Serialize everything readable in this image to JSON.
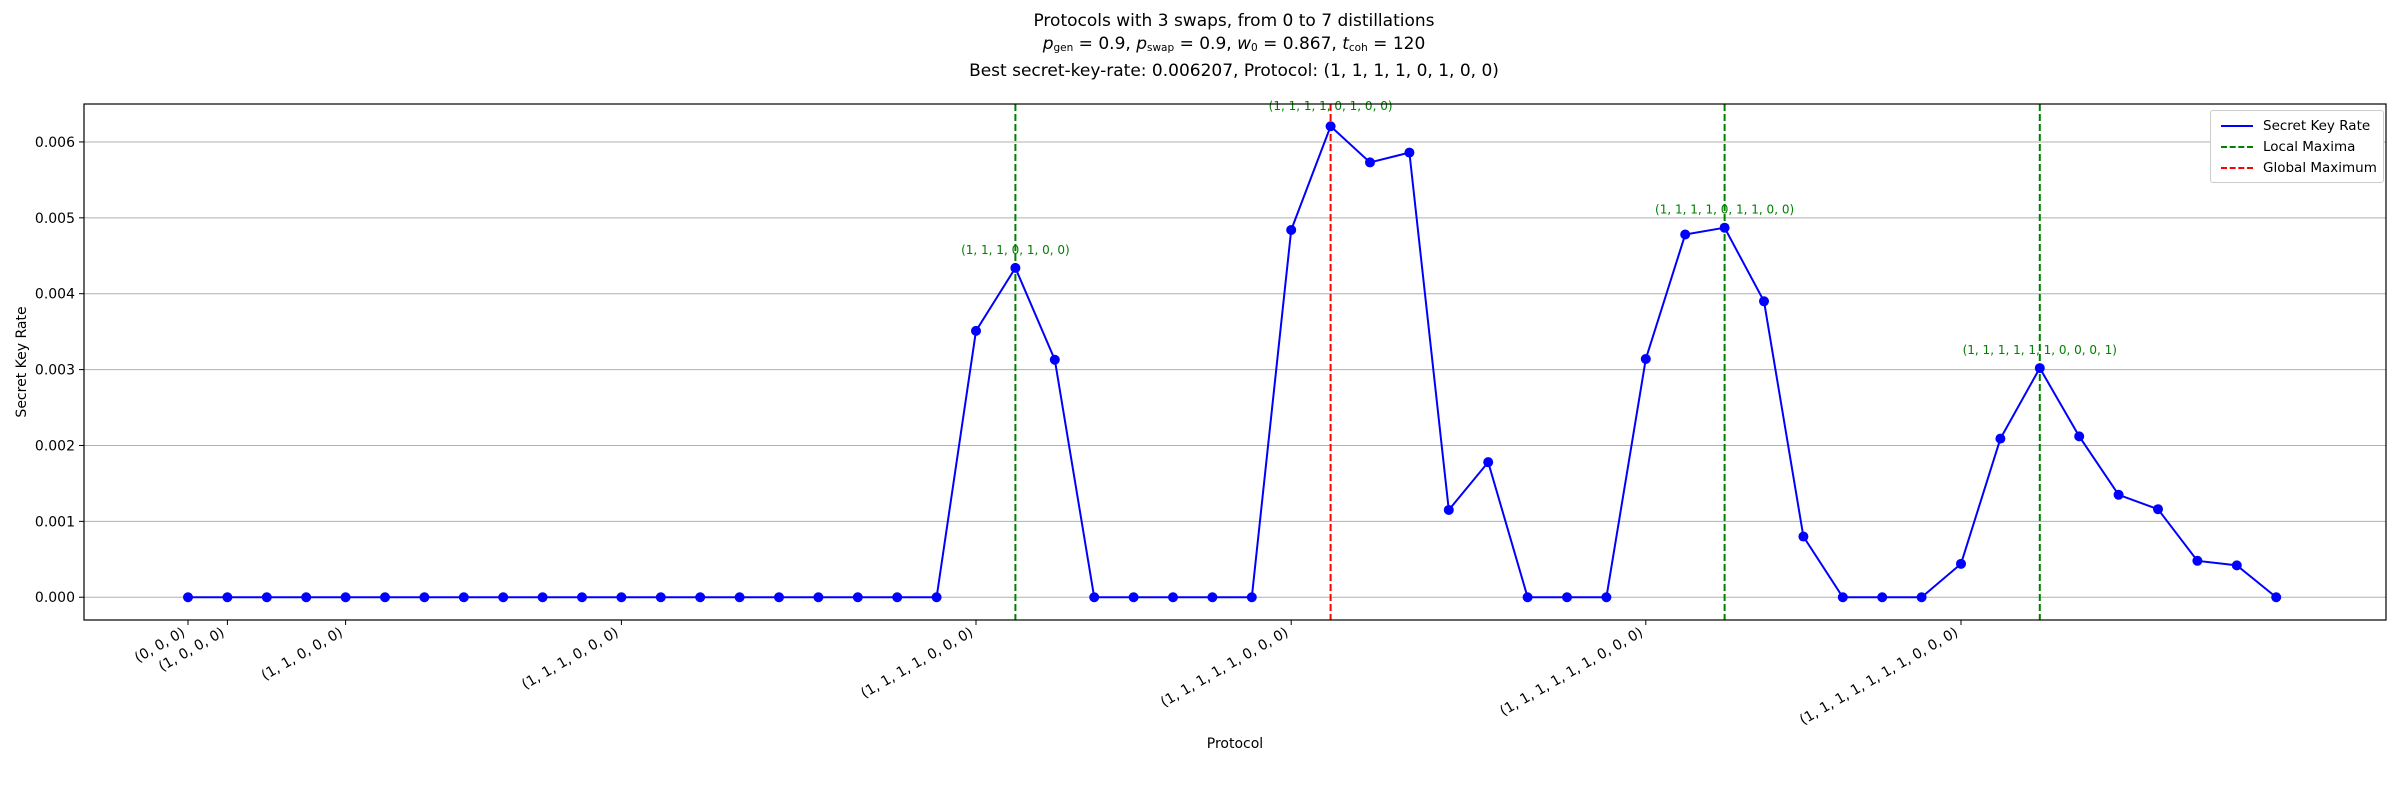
{
  "chart": {
    "title_line1": "Protocols with 3 swaps, from 0 to 7 distillations",
    "title_line2": {
      "p_gen": "0.9",
      "p_swap": "0.9",
      "w_0": "0.867",
      "t_coh": "120"
    },
    "title_line3": "Best secret-key-rate: 0.006207, Protocol: (1, 1, 1, 1, 0, 1, 0, 0)"
  },
  "legend": {
    "items": [
      {
        "label": "Secret Key Rate",
        "color": "#0000ff",
        "style": "solid"
      },
      {
        "label": "Local Maxima",
        "color": "#008000",
        "style": "dashed"
      },
      {
        "label": "Global Maximum",
        "color": "#ff0000",
        "style": "dashed"
      }
    ]
  },
  "chart_data": {
    "type": "line",
    "title": "Protocols with 3 swaps, from 0 to 7 distillations",
    "xlabel": "Protocol",
    "ylabel": "Secret Key Rate",
    "ylim": [
      -0.0003,
      0.0065
    ],
    "yticks": [
      "0.000",
      "0.001",
      "0.002",
      "0.003",
      "0.004",
      "0.005",
      "0.006"
    ],
    "grid": "horizontal",
    "legend_position": "top-right",
    "xtick_labels": [
      {
        "index": 0,
        "label": "(0, 0, 0)"
      },
      {
        "index": 1,
        "label": "(1, 0, 0, 0)"
      },
      {
        "index": 4,
        "label": "(1, 1, 0, 0, 0)"
      },
      {
        "index": 11,
        "label": "(1, 1, 1, 0, 0, 0)"
      },
      {
        "index": 20,
        "label": "(1, 1, 1, 1, 0, 0, 0)"
      },
      {
        "index": 28,
        "label": "(1, 1, 1, 1, 1, 0, 0, 0)"
      },
      {
        "index": 37,
        "label": "(1, 1, 1, 1, 1, 1, 0, 0, 0)"
      },
      {
        "index": 45,
        "label": "(1, 1, 1, 1, 1, 1, 1, 0, 0, 0)"
      }
    ],
    "series": [
      {
        "name": "Secret Key Rate",
        "color": "#0000ff",
        "values": [
          0,
          0,
          0,
          0,
          0,
          0,
          0,
          0,
          0,
          0,
          0,
          0,
          0,
          0,
          0,
          0,
          0,
          0,
          0,
          0,
          0.00351,
          0.00434,
          0.00313,
          0,
          0,
          0,
          0,
          0,
          0.00484,
          0.006207,
          0.00573,
          0.00586,
          0.00115,
          0.00178,
          0,
          0,
          0,
          0.00314,
          0.00478,
          0.00487,
          0.0039,
          0.0008,
          0,
          0,
          0,
          0.00044,
          0.00209,
          0.00302,
          0.00212,
          0.00135,
          0.00116,
          0.00048,
          0.00042,
          0
        ]
      }
    ],
    "local_maxima": [
      {
        "index": 21,
        "label": "(1, 1, 1, 0, 1, 0, 0)"
      },
      {
        "index": 39,
        "label": "(1, 1, 1, 1, 0, 1, 1, 0, 0)"
      },
      {
        "index": 47,
        "label": "(1, 1, 1, 1, 1, 1, 0, 0, 0, 1)"
      }
    ],
    "global_maximum": {
      "index": 29,
      "label": "(1, 1, 1, 1, 0, 1, 0, 0)"
    }
  }
}
